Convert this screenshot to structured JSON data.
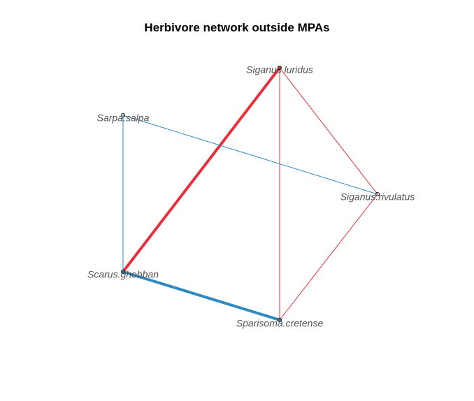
{
  "title": "Herbivore network outside MPAs",
  "colors": {
    "red": "#e8303a",
    "blue": "#2e8bc0",
    "label": "#555555",
    "node": "#000000"
  },
  "nodes": [
    {
      "id": "siganus_luridus",
      "label": "Siganus luridus"
    },
    {
      "id": "sarpa_salpa",
      "label": "Sarpa.salpa"
    },
    {
      "id": "siganus_rivulatus",
      "label": "Siganus.rivulatus"
    },
    {
      "id": "scarus_ghobban",
      "label": "Scarus.ghobban"
    },
    {
      "id": "sparisoma_cretense",
      "label": "Sparisoma.cretense"
    }
  ],
  "edges": [
    {
      "from": "siganus_luridus",
      "to": "scarus_ghobban",
      "color": "red",
      "weight": "strong"
    },
    {
      "from": "siganus_luridus",
      "to": "sparisoma_cretense",
      "color": "red",
      "weight": "weak"
    },
    {
      "from": "siganus_luridus",
      "to": "siganus_rivulatus",
      "color": "red",
      "weight": "weak"
    },
    {
      "from": "siganus_rivulatus",
      "to": "sparisoma_cretense",
      "color": "red",
      "weight": "weak"
    },
    {
      "from": "sarpa_salpa",
      "to": "siganus_rivulatus",
      "color": "blue",
      "weight": "weak"
    },
    {
      "from": "sarpa_salpa",
      "to": "scarus_ghobban",
      "color": "blue",
      "weight": "weak"
    },
    {
      "from": "scarus_ghobban",
      "to": "sparisoma_cretense",
      "color": "blue",
      "weight": "strong"
    }
  ]
}
